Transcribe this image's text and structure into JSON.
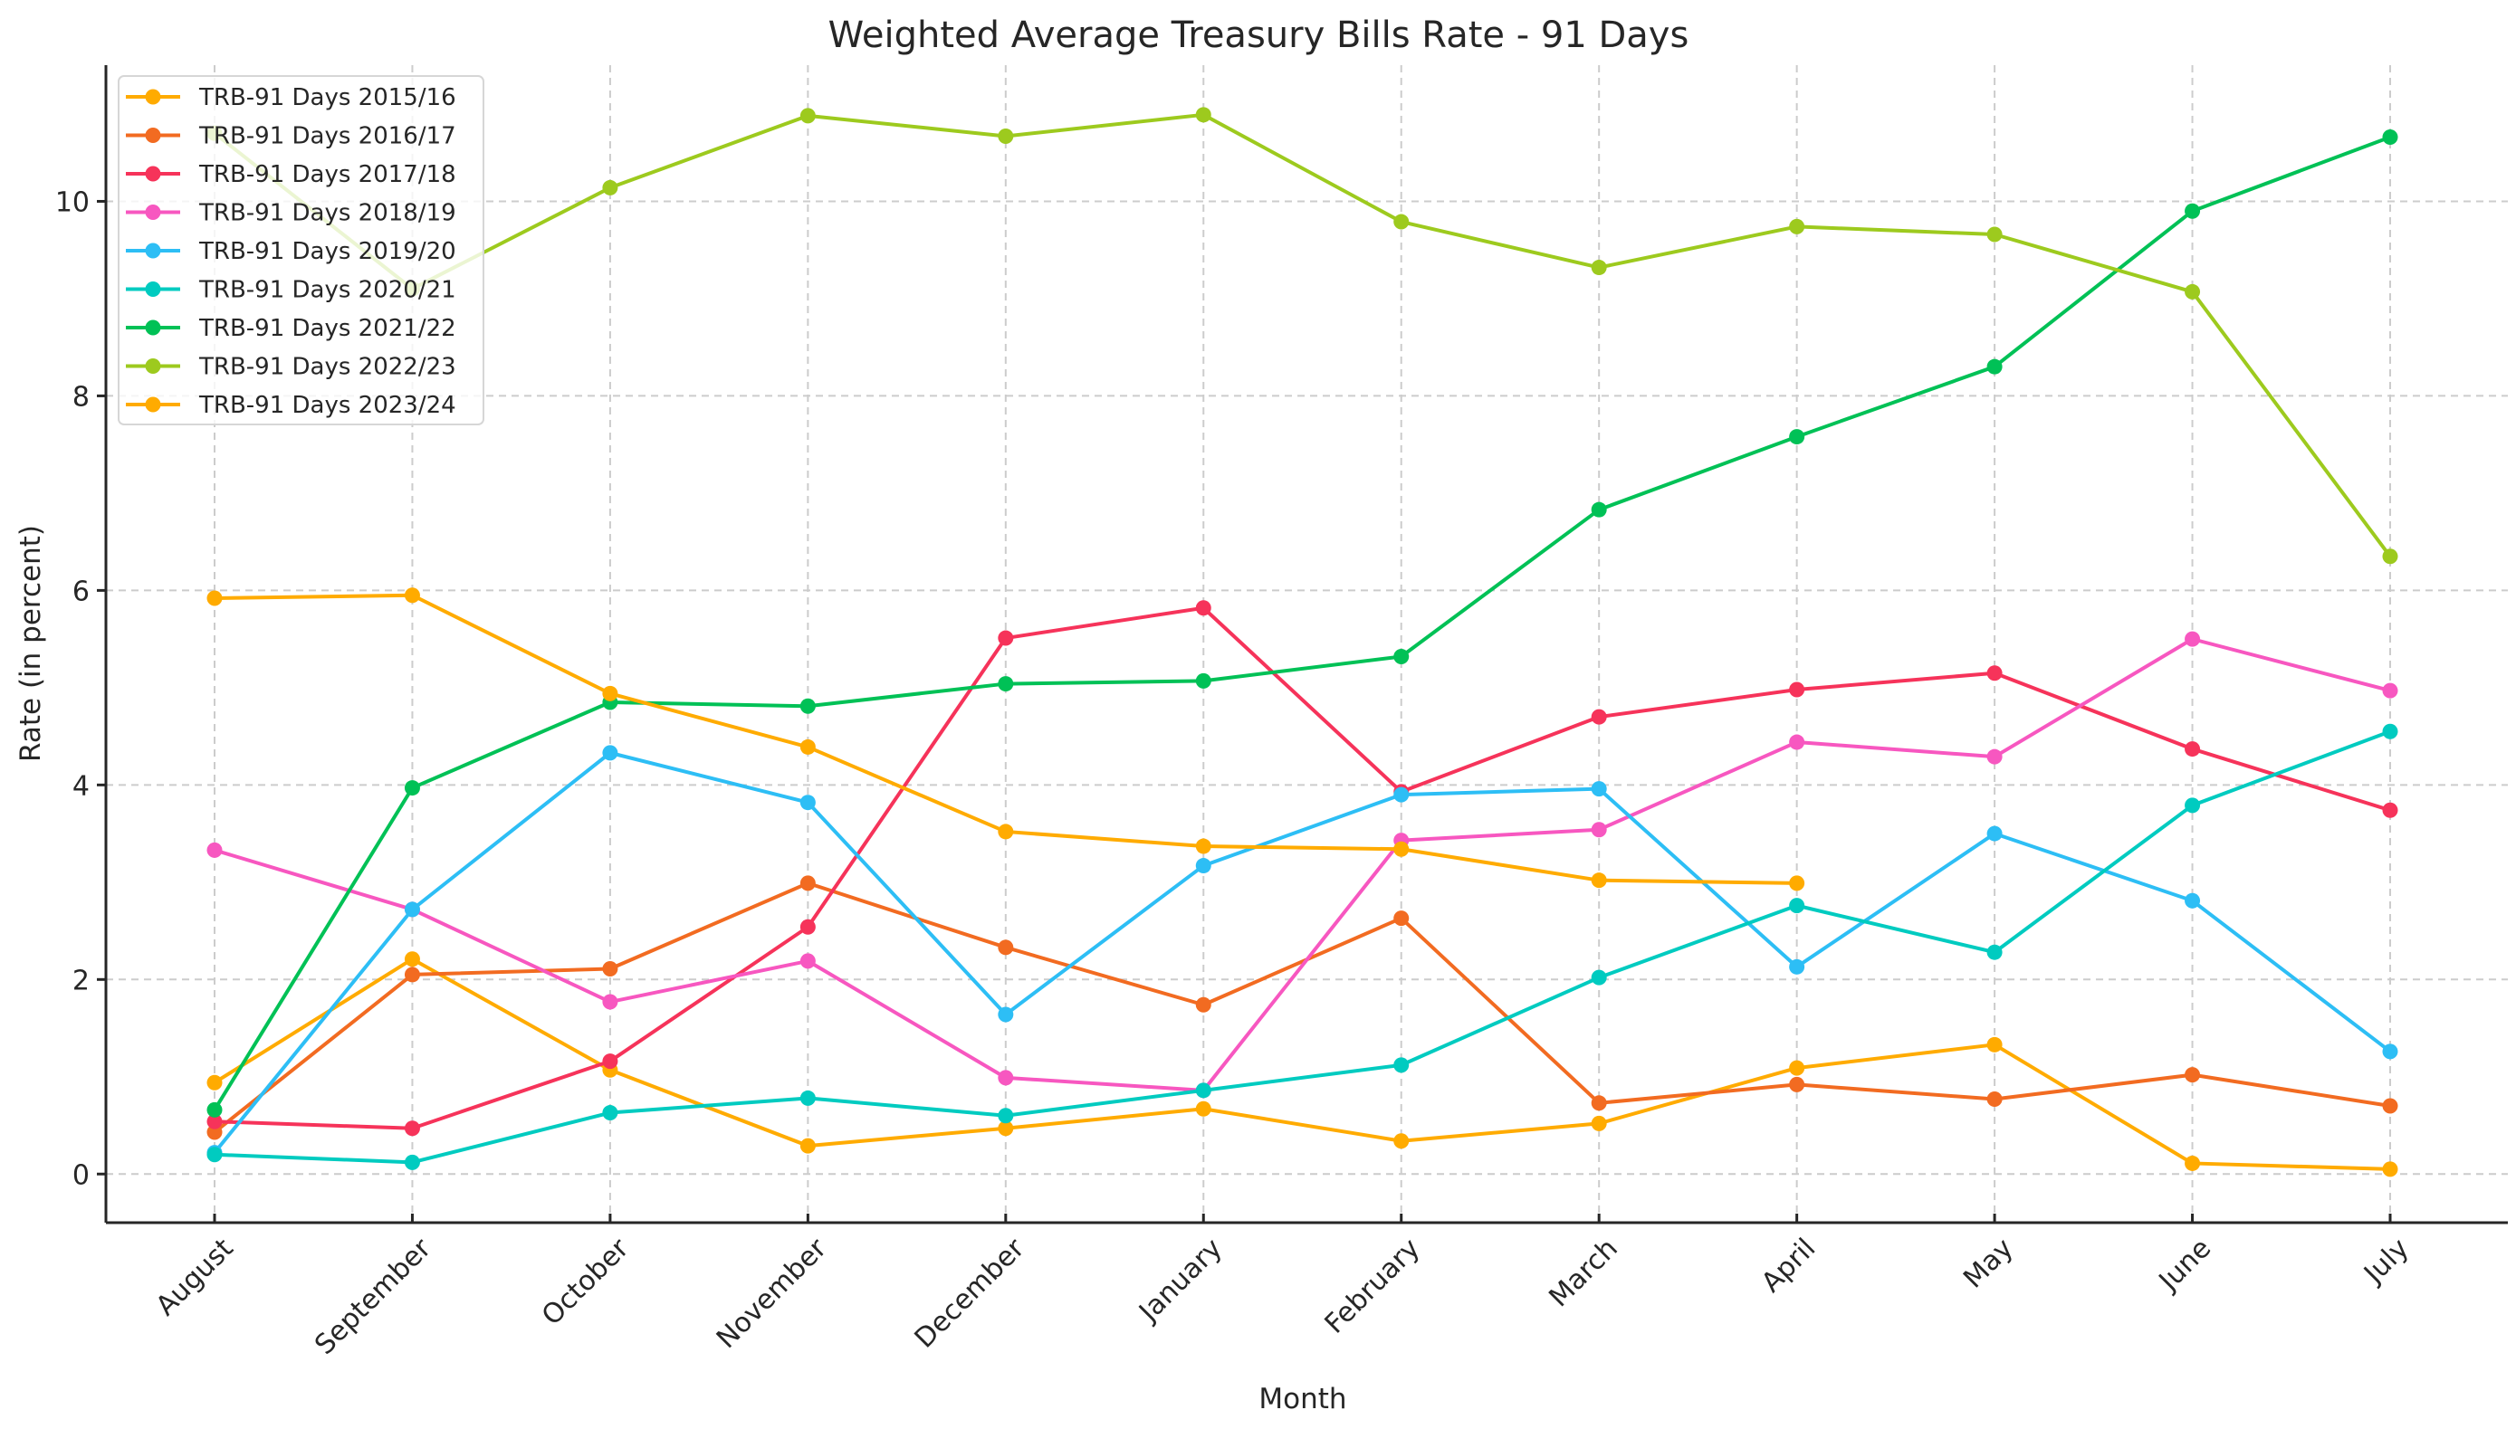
{
  "chart_data": {
    "type": "line",
    "title": "Weighted Average Treasury Bills Rate - 91 Days",
    "xlabel": "Month",
    "ylabel": "Rate (in percent)",
    "categories": [
      "August",
      "September",
      "October",
      "November",
      "December",
      "January",
      "February",
      "March",
      "April",
      "May",
      "June",
      "July"
    ],
    "ylim": [
      -0.5,
      11.4
    ],
    "yticks": [
      0,
      2,
      4,
      6,
      8,
      10
    ],
    "grid": true,
    "legend_position": "top-left",
    "series": [
      {
        "name": "TRB-91 Days 2015/16",
        "color": "#FFAB00",
        "values": [
          0.94,
          2.21,
          1.07,
          0.29,
          0.47,
          0.67,
          0.34,
          0.52,
          1.09,
          1.33,
          0.11,
          0.05
        ]
      },
      {
        "name": "TRB-91 Days 2016/17",
        "color": "#F26B21",
        "values": [
          0.43,
          2.05,
          2.11,
          2.99,
          2.33,
          1.74,
          2.63,
          0.73,
          0.92,
          0.77,
          1.02,
          0.7
        ]
      },
      {
        "name": "TRB-91 Days 2017/18",
        "color": "#F6335A",
        "values": [
          0.54,
          0.47,
          1.16,
          2.54,
          5.51,
          5.82,
          3.93,
          4.7,
          4.98,
          5.15,
          4.37,
          3.74
        ]
      },
      {
        "name": "TRB-91 Days 2018/19",
        "color": "#F757C0",
        "values": [
          3.33,
          2.72,
          1.77,
          2.19,
          0.99,
          0.86,
          3.43,
          3.54,
          4.44,
          4.29,
          5.5,
          4.97
        ]
      },
      {
        "name": "TRB-91 Days 2019/20",
        "color": "#2DBEF5",
        "values": [
          0.22,
          2.72,
          4.33,
          3.82,
          1.64,
          3.17,
          3.9,
          3.96,
          2.13,
          3.5,
          2.81,
          1.26
        ]
      },
      {
        "name": "TRB-91 Days 2020/21",
        "color": "#00CBC0",
        "values": [
          0.2,
          0.12,
          0.63,
          0.78,
          0.6,
          0.86,
          1.12,
          2.02,
          2.76,
          2.28,
          3.79,
          4.55
        ]
      },
      {
        "name": "TRB-91 Days 2021/22",
        "color": "#00C156",
        "values": [
          0.66,
          3.97,
          4.85,
          4.81,
          5.04,
          5.07,
          5.32,
          6.83,
          7.58,
          8.3,
          9.9,
          10.66
        ]
      },
      {
        "name": "TRB-91 Days 2022/23",
        "color": "#9DCA1E",
        "values": [
          10.7,
          9.1,
          10.14,
          10.88,
          10.67,
          10.89,
          9.79,
          9.32,
          9.74,
          9.66,
          9.07,
          6.35
        ]
      },
      {
        "name": "TRB-91 Days 2023/24",
        "color": "#FFAB00",
        "values": [
          5.92,
          5.95,
          4.94,
          4.39,
          3.52,
          3.37,
          3.34,
          3.02,
          2.99,
          null,
          null,
          null
        ]
      }
    ]
  }
}
